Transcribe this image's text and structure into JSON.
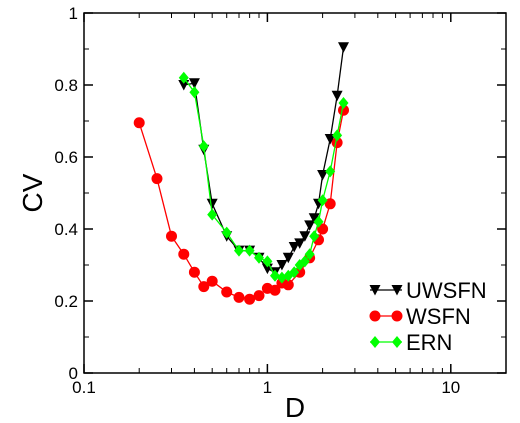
{
  "chart_data": {
    "type": "line",
    "xlabel": "D",
    "ylabel": "CV",
    "xscale": "log",
    "xlim": [
      0.1,
      20
    ],
    "ylim": [
      0,
      1
    ],
    "x_ticks": [
      0.1,
      1,
      10
    ],
    "x_tick_labels": [
      "0.1",
      "1",
      "10"
    ],
    "y_ticks": [
      0,
      0.2,
      0.4,
      0.6,
      0.8,
      1
    ],
    "y_tick_labels": [
      "0",
      "0.2",
      "0.4",
      "0.6",
      "0.8",
      "1"
    ],
    "grid": false,
    "legend_position": "bottom-right",
    "series": [
      {
        "name": "UWSFN",
        "marker": "triangle-down",
        "color": "#000000",
        "x": [
          0.35,
          0.4,
          0.45,
          0.5,
          0.6,
          0.7,
          0.8,
          0.9,
          1.0,
          1.1,
          1.2,
          1.3,
          1.4,
          1.5,
          1.6,
          1.7,
          1.8,
          1.9,
          2.0,
          2.2,
          2.4,
          2.6
        ],
        "y": [
          0.8,
          0.805,
          0.62,
          0.47,
          0.38,
          0.34,
          0.34,
          0.32,
          0.29,
          0.28,
          0.3,
          0.32,
          0.35,
          0.36,
          0.38,
          0.41,
          0.43,
          0.47,
          0.55,
          0.65,
          0.77,
          0.905
        ]
      },
      {
        "name": "WSFN",
        "marker": "circle",
        "color": "#ff0000",
        "x": [
          0.2,
          0.25,
          0.3,
          0.35,
          0.4,
          0.45,
          0.5,
          0.6,
          0.7,
          0.8,
          0.9,
          1.0,
          1.1,
          1.2,
          1.3,
          1.5,
          1.7,
          1.9,
          2.0,
          2.2,
          2.4,
          2.6
        ],
        "y": [
          0.695,
          0.54,
          0.38,
          0.33,
          0.28,
          0.24,
          0.255,
          0.225,
          0.21,
          0.205,
          0.215,
          0.235,
          0.23,
          0.25,
          0.245,
          0.28,
          0.32,
          0.37,
          0.4,
          0.47,
          0.64,
          0.73
        ]
      },
      {
        "name": "ERN",
        "marker": "diamond",
        "color": "#00ff00",
        "x": [
          0.35,
          0.4,
          0.45,
          0.5,
          0.6,
          0.7,
          0.8,
          0.9,
          1.0,
          1.1,
          1.2,
          1.3,
          1.4,
          1.5,
          1.6,
          1.7,
          1.8,
          1.9,
          2.0,
          2.2,
          2.4,
          2.6
        ],
        "y": [
          0.82,
          0.78,
          0.63,
          0.44,
          0.39,
          0.34,
          0.34,
          0.32,
          0.31,
          0.27,
          0.265,
          0.27,
          0.28,
          0.3,
          0.31,
          0.33,
          0.38,
          0.42,
          0.48,
          0.56,
          0.66,
          0.75
        ]
      }
    ]
  }
}
